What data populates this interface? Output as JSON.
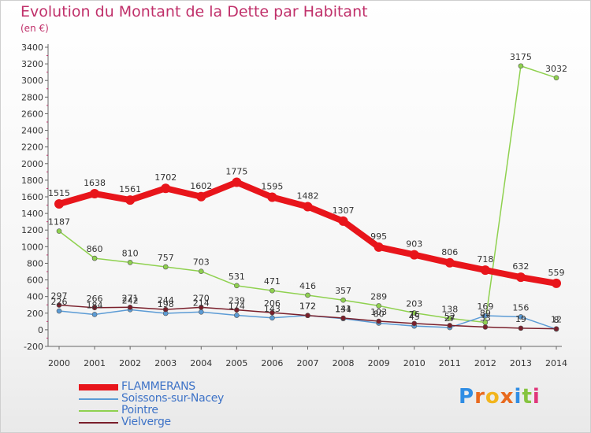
{
  "title": "Evolution du Montant de la Dette par Habitant",
  "subtitle": "(en €)",
  "brand": {
    "letters": [
      "P",
      "r",
      "o",
      "x",
      "i",
      "t",
      "i"
    ],
    "colors": [
      "#2f8de4",
      "#e86a1f",
      "#f2b51d",
      "#e86a1f",
      "#2f8de4",
      "#86c440",
      "#e0367a"
    ]
  },
  "chart_data": {
    "type": "line",
    "title": "Evolution du Montant de la Dette par Habitant",
    "subtitle": "(en €)",
    "x": [
      "2000",
      "2001",
      "2002",
      "2003",
      "2004",
      "2005",
      "2006",
      "2007",
      "2008",
      "2009",
      "2010",
      "2011",
      "2012",
      "2013",
      "2014"
    ],
    "ylim": [
      -200,
      3400
    ],
    "yticks": [
      -200,
      0,
      200,
      400,
      600,
      800,
      1000,
      1200,
      1400,
      1600,
      1800,
      2000,
      2200,
      2400,
      2600,
      2800,
      3000,
      3200,
      3400
    ],
    "grid": false,
    "legend": "bottom-left",
    "series": [
      {
        "name": "FLAMMERANS",
        "color": "#e8151b",
        "values": [
          1515,
          1638,
          1561,
          1702,
          1602,
          1775,
          1595,
          1482,
          1307,
          995,
          903,
          806,
          718,
          632,
          559
        ],
        "labels": [
          "1515",
          "1638",
          "1561",
          "1702",
          "1602",
          "1775",
          "1595",
          "1482",
          "1307",
          "995",
          "903",
          "806",
          "718",
          "632",
          "559"
        ]
      },
      {
        "name": "Soissons-sur-Nacey",
        "color": "#5b9bd5",
        "values": [
          226,
          184,
          242,
          198,
          214,
          174,
          143,
          172,
          134,
          80,
          45,
          27,
          169,
          156,
          8
        ],
        "labels": [
          "226",
          "184",
          "242",
          "198",
          "214",
          "174",
          "143",
          "172",
          "134",
          "80",
          "45",
          "27",
          "169",
          "156",
          "8"
        ]
      },
      {
        "name": "Pointre",
        "color": "#8fd14f",
        "values": [
          1187,
          860,
          810,
          757,
          703,
          531,
          471,
          416,
          357,
          289,
          203,
          138,
          89,
          3175,
          3032
        ],
        "labels": [
          "1187",
          "860",
          "810",
          "757",
          "703",
          "531",
          "471",
          "416",
          "357",
          "289",
          "203",
          "138",
          "89",
          "3175",
          "3032"
        ]
      },
      {
        "name": "Vielverge",
        "color": "#7a1f2b",
        "values": [
          297,
          266,
          271,
          244,
          270,
          239,
          206,
          172,
          141,
          103,
          76,
          52,
          33,
          19,
          12
        ],
        "labels": [
          "297",
          "266",
          "271",
          "244",
          "270",
          "239",
          "206",
          "172",
          "141",
          "103",
          "76",
          "52",
          "33",
          "19",
          "12"
        ]
      }
    ]
  }
}
